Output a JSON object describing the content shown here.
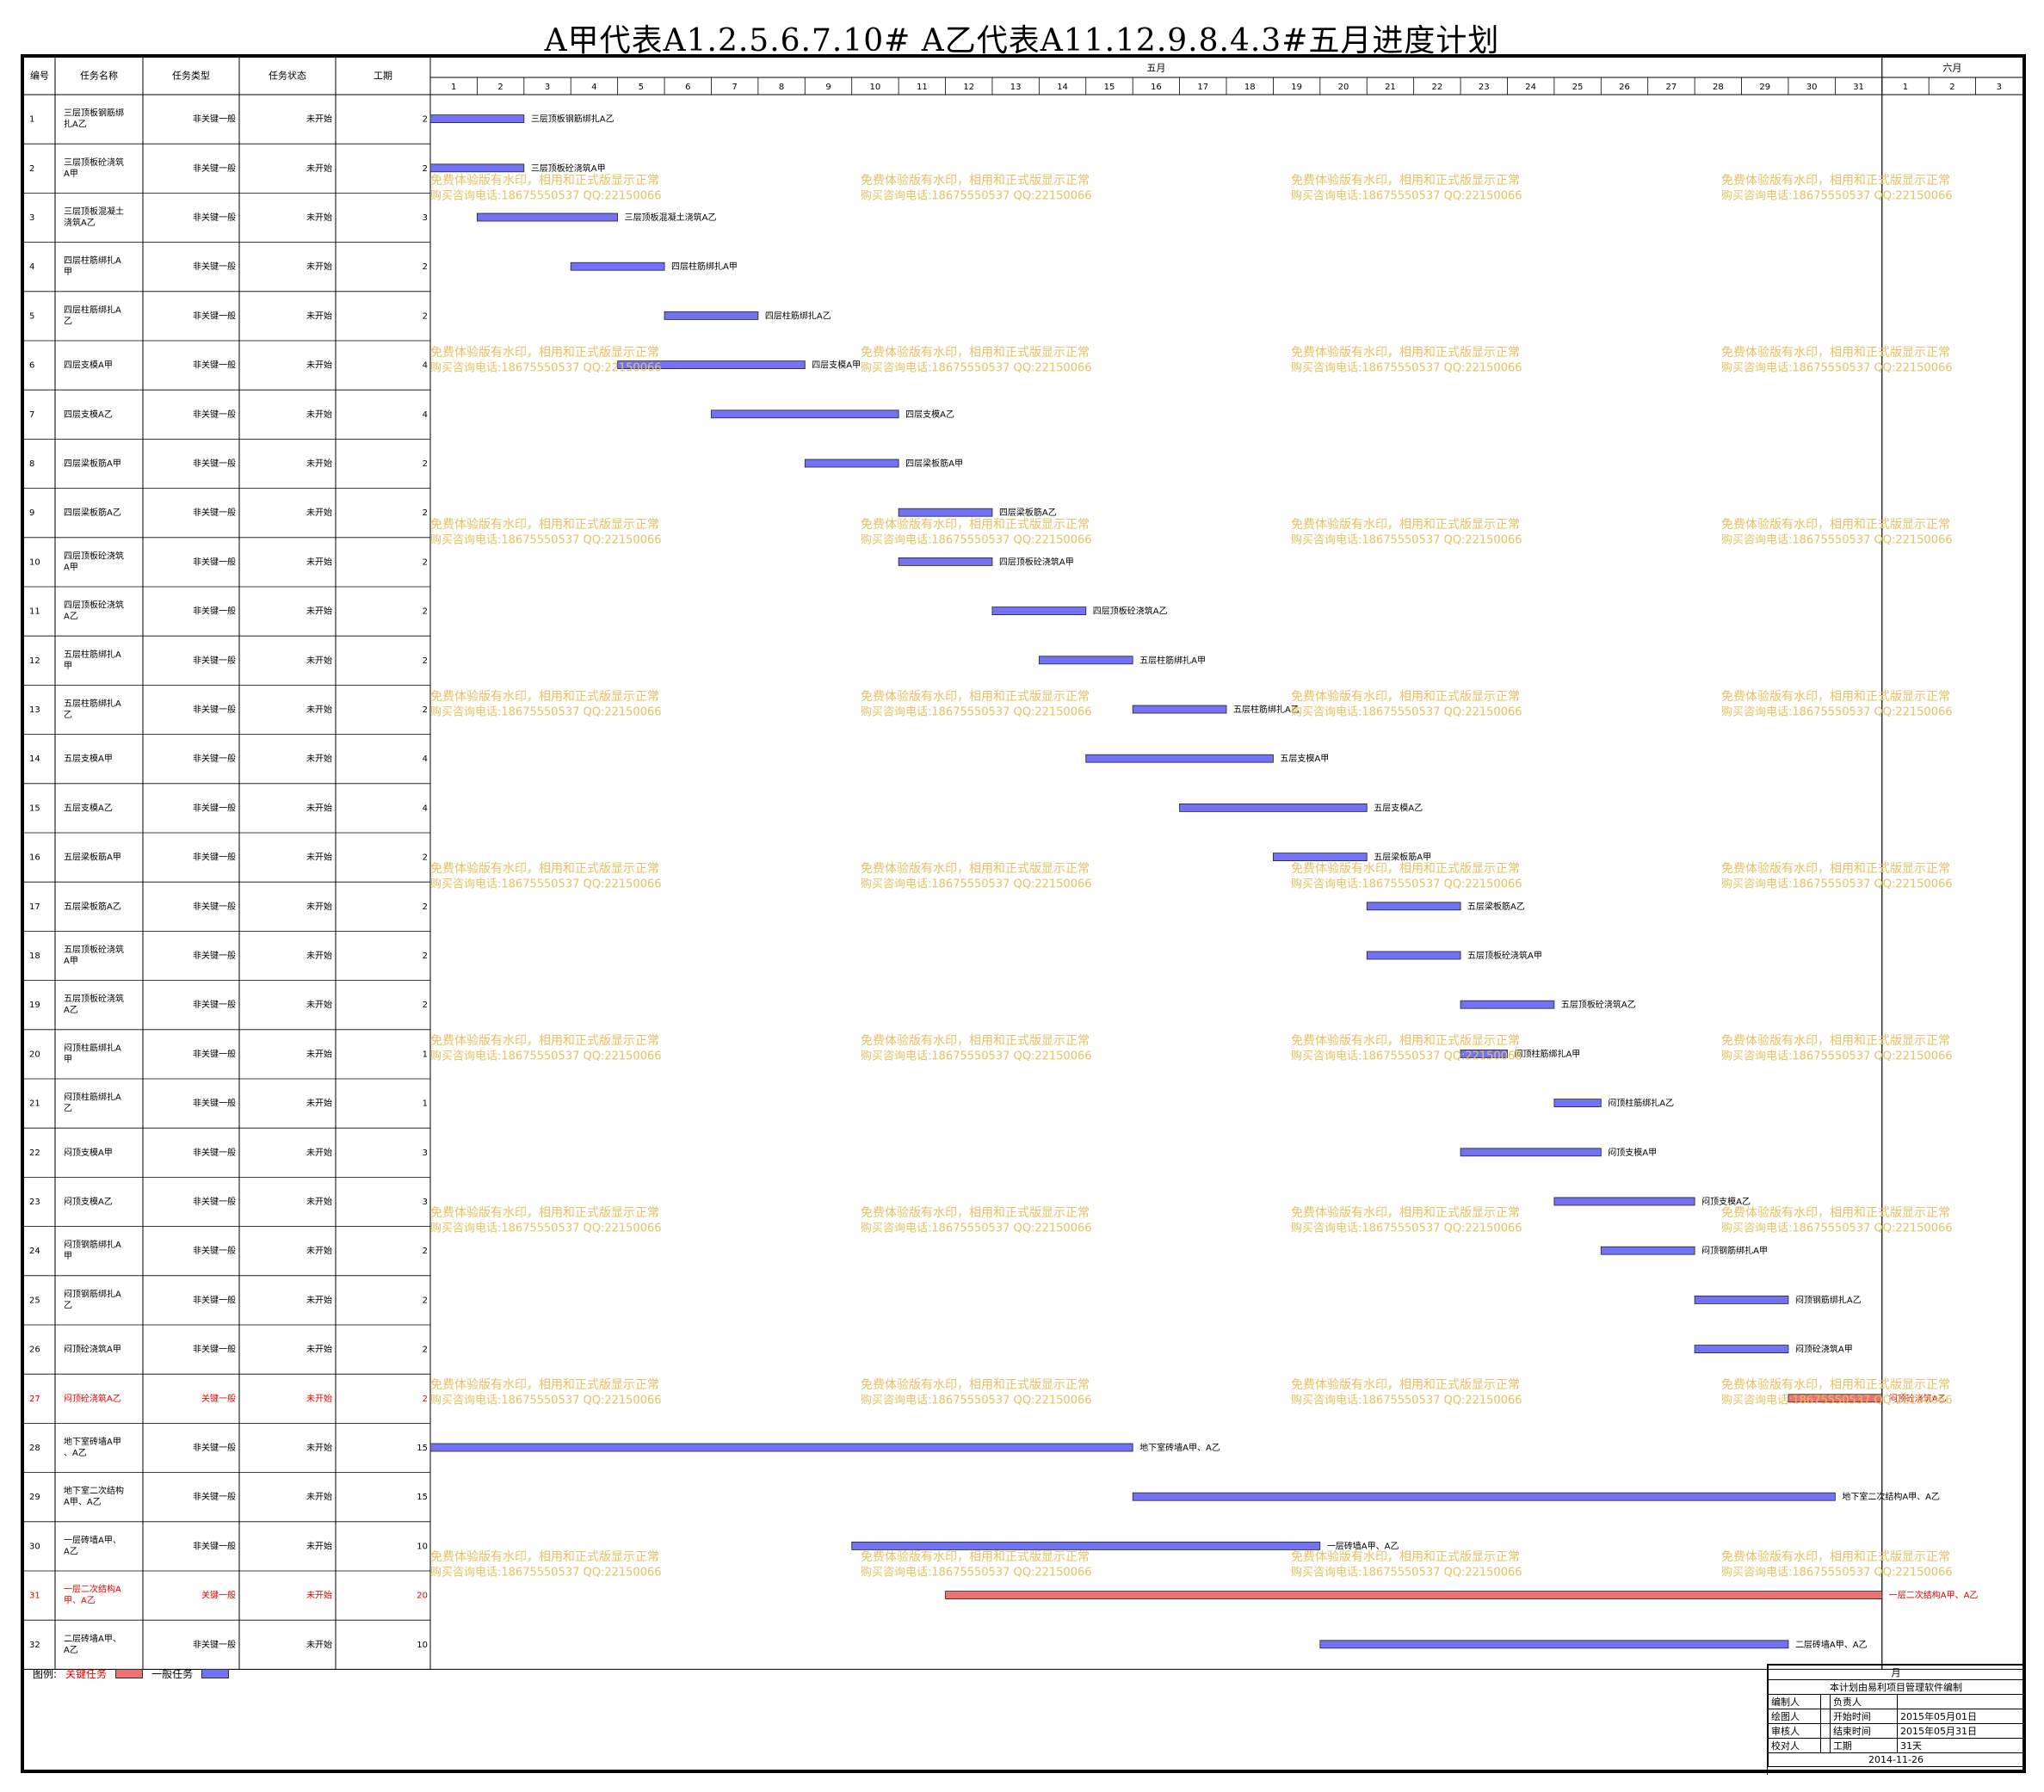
{
  "title": "A甲代表A1.2.5.6.7.10#   A乙代表A11.12.9.8.4.3#五月进度计划",
  "colors": {
    "critical": "#ef7272",
    "normal": "#7272f5",
    "critical_text": "#e00000",
    "watermark": "#e6c060"
  },
  "table_headers": [
    "编号",
    "任务名称",
    "任务类型",
    "任务状态",
    "工期"
  ],
  "months": [
    {
      "label": "五月",
      "days": 31
    },
    {
      "label": "六月",
      "days": 3
    }
  ],
  "watermark": {
    "line1": "免费体验版有水印，相用和正式版显示正常",
    "line2": "购买咨询电话:18675550537 QQ:22150066"
  },
  "legend": {
    "label": "图例:",
    "critical": "关键任务",
    "normal": "一般任务"
  },
  "info_block": {
    "top": "月",
    "software": "本计划由易利项目管理软件编制",
    "rows": [
      [
        "编制人",
        "",
        "负责人",
        ""
      ],
      [
        "绘图人",
        "",
        "开始时间",
        "2015年05月01日"
      ],
      [
        "审核人",
        "",
        "结束时间",
        "2015年05月31日"
      ],
      [
        "校对人",
        "",
        "工期",
        "31天"
      ]
    ],
    "date": "2014-11-26"
  },
  "chart_data": {
    "type": "gantt",
    "x_unit": "day",
    "x_ticks": [
      "1",
      "2",
      "3",
      "4",
      "5",
      "6",
      "7",
      "8",
      "9",
      "10",
      "11",
      "12",
      "13",
      "14",
      "15",
      "16",
      "17",
      "18",
      "19",
      "20",
      "21",
      "22",
      "23",
      "24",
      "25",
      "26",
      "27",
      "28",
      "29",
      "30",
      "31",
      "1",
      "2",
      "3"
    ],
    "tasks": [
      {
        "id": "1",
        "name": "三层顶板钢筋绑扎A乙",
        "type": "非关键一般",
        "status": "未开始",
        "duration": "2",
        "start": 1,
        "end": 2,
        "label": "三层顶板钢筋绑扎A乙",
        "critical": false
      },
      {
        "id": "2",
        "name": "三层顶板砼浇筑A甲",
        "type": "非关键一般",
        "status": "未开始",
        "duration": "2",
        "start": 1,
        "end": 2,
        "label": "三层顶板砼浇筑A甲",
        "critical": false
      },
      {
        "id": "3",
        "name": "三层顶板混凝土浇筑A乙",
        "type": "非关键一般",
        "status": "未开始",
        "duration": "3",
        "start": 2,
        "end": 4,
        "label": "三层顶板混凝土浇筑A乙",
        "critical": false
      },
      {
        "id": "4",
        "name": "四层柱筋绑扎A甲",
        "type": "非关键一般",
        "status": "未开始",
        "duration": "2",
        "start": 4,
        "end": 5,
        "label": "四层柱筋绑扎A甲",
        "critical": false
      },
      {
        "id": "5",
        "name": "四层柱筋绑扎A乙",
        "type": "非关键一般",
        "status": "未开始",
        "duration": "2",
        "start": 6,
        "end": 7,
        "label": "四层柱筋绑扎A乙",
        "critical": false
      },
      {
        "id": "6",
        "name": "四层支模A甲",
        "type": "非关键一般",
        "status": "未开始",
        "duration": "4",
        "start": 5,
        "end": 8,
        "label": "四层支模A甲",
        "critical": false
      },
      {
        "id": "7",
        "name": "四层支模A乙",
        "type": "非关键一般",
        "status": "未开始",
        "duration": "4",
        "start": 7,
        "end": 10,
        "label": "四层支模A乙",
        "critical": false
      },
      {
        "id": "8",
        "name": "四层梁板筋A甲",
        "type": "非关键一般",
        "status": "未开始",
        "duration": "2",
        "start": 9,
        "end": 10,
        "label": "四层梁板筋A甲",
        "critical": false
      },
      {
        "id": "9",
        "name": "四层梁板筋A乙",
        "type": "非关键一般",
        "status": "未开始",
        "duration": "2",
        "start": 11,
        "end": 12,
        "label": "四层梁板筋A乙",
        "critical": false
      },
      {
        "id": "10",
        "name": "四层顶板砼浇筑A甲",
        "type": "非关键一般",
        "status": "未开始",
        "duration": "2",
        "start": 11,
        "end": 12,
        "label": "四层顶板砼浇筑A甲",
        "critical": false
      },
      {
        "id": "11",
        "name": "四层顶板砼浇筑A乙",
        "type": "非关键一般",
        "status": "未开始",
        "duration": "2",
        "start": 13,
        "end": 14,
        "label": "四层顶板砼浇筑A乙",
        "critical": false
      },
      {
        "id": "12",
        "name": "五层柱筋绑扎A甲",
        "type": "非关键一般",
        "status": "未开始",
        "duration": "2",
        "start": 14,
        "end": 15,
        "label": "五层柱筋绑扎A甲",
        "critical": false
      },
      {
        "id": "13",
        "name": "五层柱筋绑扎A乙",
        "type": "非关键一般",
        "status": "未开始",
        "duration": "2",
        "start": 16,
        "end": 17,
        "label": "五层柱筋绑扎A乙",
        "critical": false
      },
      {
        "id": "14",
        "name": "五层支模A甲",
        "type": "非关键一般",
        "status": "未开始",
        "duration": "4",
        "start": 15,
        "end": 18,
        "label": "五层支模A甲",
        "critical": false
      },
      {
        "id": "15",
        "name": "五层支模A乙",
        "type": "非关键一般",
        "status": "未开始",
        "duration": "4",
        "start": 17,
        "end": 20,
        "label": "五层支模A乙",
        "critical": false
      },
      {
        "id": "16",
        "name": "五层梁板筋A甲",
        "type": "非关键一般",
        "status": "未开始",
        "duration": "2",
        "start": 19,
        "end": 20,
        "label": "五层梁板筋A甲",
        "critical": false
      },
      {
        "id": "17",
        "name": "五层梁板筋A乙",
        "type": "非关键一般",
        "status": "未开始",
        "duration": "2",
        "start": 21,
        "end": 22,
        "label": "五层梁板筋A乙",
        "critical": false
      },
      {
        "id": "18",
        "name": "五层顶板砼浇筑A甲",
        "type": "非关键一般",
        "status": "未开始",
        "duration": "2",
        "start": 21,
        "end": 22,
        "label": "五层顶板砼浇筑A甲",
        "critical": false
      },
      {
        "id": "19",
        "name": "五层顶板砼浇筑A乙",
        "type": "非关键一般",
        "status": "未开始",
        "duration": "2",
        "start": 23,
        "end": 24,
        "label": "五层顶板砼浇筑A乙",
        "critical": false
      },
      {
        "id": "20",
        "name": "闷顶柱筋绑扎A甲",
        "type": "非关键一般",
        "status": "未开始",
        "duration": "1",
        "start": 23,
        "end": 23,
        "label": "闷顶柱筋绑扎A甲",
        "critical": false
      },
      {
        "id": "21",
        "name": "闷顶柱筋绑扎A乙",
        "type": "非关键一般",
        "status": "未开始",
        "duration": "1",
        "start": 25,
        "end": 25,
        "label": "闷顶柱筋绑扎A乙",
        "critical": false
      },
      {
        "id": "22",
        "name": "闷顶支模A甲",
        "type": "非关键一般",
        "status": "未开始",
        "duration": "3",
        "start": 23,
        "end": 25,
        "label": "闷顶支模A甲",
        "critical": false
      },
      {
        "id": "23",
        "name": "闷顶支模A乙",
        "type": "非关键一般",
        "status": "未开始",
        "duration": "3",
        "start": 25,
        "end": 27,
        "label": "闷顶支模A乙",
        "critical": false
      },
      {
        "id": "24",
        "name": "闷顶钢筋绑扎A甲",
        "type": "非关键一般",
        "status": "未开始",
        "duration": "2",
        "start": 26,
        "end": 27,
        "label": "闷顶钢筋绑扎A甲",
        "critical": false
      },
      {
        "id": "25",
        "name": "闷顶钢筋绑扎A乙",
        "type": "非关键一般",
        "status": "未开始",
        "duration": "2",
        "start": 28,
        "end": 29,
        "label": "闷顶钢筋绑扎A乙",
        "critical": false
      },
      {
        "id": "26",
        "name": "闷顶砼浇筑A甲",
        "type": "非关键一般",
        "status": "未开始",
        "duration": "2",
        "start": 28,
        "end": 29,
        "label": "闷顶砼浇筑A甲",
        "critical": false
      },
      {
        "id": "27",
        "name": "闷顶砼浇筑A乙",
        "type": "关键一般",
        "status": "未开始",
        "duration": "2",
        "start": 30,
        "end": 31,
        "label": "闷顶砼浇筑A乙",
        "critical": true
      },
      {
        "id": "28",
        "name": "地下室砖墙A甲、A乙",
        "type": "非关键一般",
        "status": "未开始",
        "duration": "15",
        "start": 1,
        "end": 15,
        "label": "地下室砖墙A甲、A乙",
        "critical": false
      },
      {
        "id": "29",
        "name": "地下室二次结构A甲、A乙",
        "type": "非关键一般",
        "status": "未开始",
        "duration": "15",
        "start": 16,
        "end": 30,
        "label": "地下室二次结构A甲、A乙",
        "critical": false
      },
      {
        "id": "30",
        "name": "一层砖墙A甲、A乙",
        "type": "非关键一般",
        "status": "未开始",
        "duration": "10",
        "start": 10,
        "end": 19,
        "label": "一层砖墙A甲、A乙",
        "critical": false
      },
      {
        "id": "31",
        "name": "一层二次结构A甲、A乙",
        "type": "关键一般",
        "status": "未开始",
        "duration": "20",
        "start": 12,
        "end": 31,
        "label": "一层二次结构A甲、A乙",
        "critical": true
      },
      {
        "id": "32",
        "name": "二层砖墙A甲、A乙",
        "type": "非关键一般",
        "status": "未开始",
        "duration": "10",
        "start": 20,
        "end": 29,
        "label": "二层砖墙A甲、A乙",
        "critical": false
      }
    ]
  }
}
